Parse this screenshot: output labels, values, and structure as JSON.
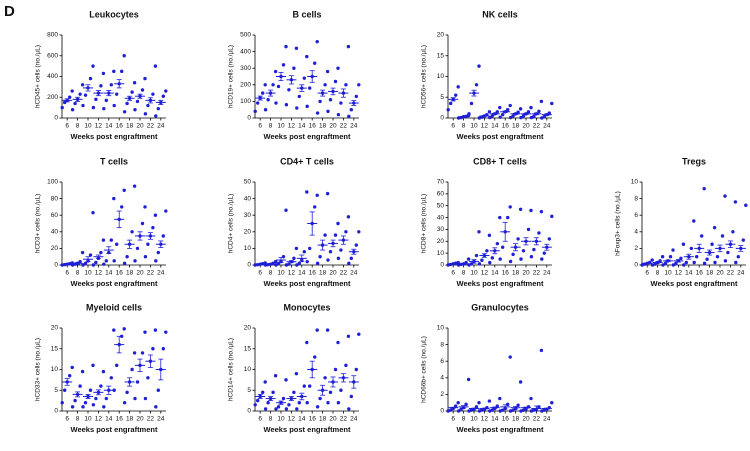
{
  "panel_label": "D",
  "chart_data": [
    {
      "type": "dotplot",
      "title": "Leukocytes",
      "x_label": "Weeks post engraftment",
      "y_label": "hCD45+ cells (no./µL)",
      "color": "#1f1fd6",
      "categories": [
        "6",
        "8",
        "10",
        "12",
        "14",
        "16",
        "18",
        "20",
        "22",
        "24"
      ],
      "ylim": [
        0,
        800
      ],
      "yticks": [
        0,
        200,
        400,
        600,
        800
      ],
      "values": [
        170,
        180,
        290,
        240,
        240,
        330,
        190,
        210,
        170,
        150
      ],
      "errors": [
        15,
        20,
        30,
        25,
        25,
        40,
        20,
        20,
        25,
        20
      ],
      "points": [
        [
          100,
          150,
          170,
          200,
          260
        ],
        [
          80,
          140,
          180,
          230,
          320
        ],
        [
          120,
          220,
          290,
          380,
          500
        ],
        [
          100,
          180,
          240,
          310,
          430
        ],
        [
          90,
          170,
          240,
          320,
          450
        ],
        [
          120,
          230,
          330,
          450,
          600
        ],
        [
          60,
          140,
          190,
          250,
          340
        ],
        [
          80,
          160,
          210,
          270,
          380
        ],
        [
          40,
          120,
          170,
          230,
          500
        ],
        [
          20,
          90,
          150,
          210,
          260
        ]
      ]
    },
    {
      "type": "dotplot",
      "title": "B cells",
      "x_label": "Weeks post engraftment",
      "y_label": "hCD19+ cells (no./µL)",
      "color": "#1f1fd6",
      "categories": [
        "6",
        "8",
        "10",
        "12",
        "14",
        "16",
        "18",
        "20",
        "22",
        "24"
      ],
      "ylim": [
        0,
        500
      ],
      "yticks": [
        0,
        100,
        200,
        300,
        400,
        500
      ],
      "values": [
        120,
        150,
        250,
        230,
        180,
        250,
        150,
        160,
        150,
        90
      ],
      "errors": [
        12,
        18,
        25,
        25,
        20,
        35,
        18,
        20,
        25,
        15
      ],
      "points": [
        [
          40,
          90,
          120,
          150,
          200
        ],
        [
          50,
          110,
          150,
          200,
          280
        ],
        [
          90,
          190,
          250,
          320,
          430
        ],
        [
          80,
          170,
          230,
          300,
          420
        ],
        [
          60,
          130,
          180,
          240,
          370
        ],
        [
          70,
          180,
          250,
          330,
          460
        ],
        [
          30,
          100,
          150,
          200,
          280
        ],
        [
          40,
          110,
          160,
          220,
          300
        ],
        [
          20,
          90,
          150,
          200,
          430
        ],
        [
          10,
          50,
          90,
          130,
          200
        ]
      ]
    },
    {
      "type": "dotplot",
      "title": "NK cells",
      "x_label": "Weeks post engraftment",
      "y_label": "hCD56+ cells (no./µL)",
      "color": "#1f1fd6",
      "categories": [
        "6",
        "8",
        "10",
        "12",
        "14",
        "16",
        "18",
        "20",
        "22",
        "24"
      ],
      "ylim": [
        0,
        20
      ],
      "yticks": [
        0,
        5,
        10,
        15,
        20
      ],
      "values": [
        4.5,
        0.3,
        6,
        0.5,
        1,
        1.5,
        1,
        1,
        1,
        0.8
      ],
      "errors": [
        0.4,
        0.05,
        0.7,
        0.1,
        0.15,
        0.2,
        0.15,
        0.15,
        0.2,
        0.2
      ],
      "points": [
        [
          2,
          3.5,
          4.5,
          5.5,
          7.5
        ],
        [
          0,
          0.1,
          0.3,
          0.4,
          0.6
        ],
        [
          1,
          3.5,
          6,
          8,
          12.5
        ],
        [
          0,
          0.2,
          0.5,
          0.8,
          1.5
        ],
        [
          0.1,
          0.5,
          1,
          1.5,
          2.5
        ],
        [
          0.2,
          0.8,
          1.5,
          2,
          3
        ],
        [
          0.1,
          0.5,
          1,
          1.4,
          2.2
        ],
        [
          0.1,
          0.5,
          1,
          1.5,
          2.5
        ],
        [
          0.1,
          0.4,
          1,
          1.6,
          4
        ],
        [
          0,
          0.3,
          0.8,
          1.2,
          3.5
        ]
      ]
    },
    {
      "type": "dotplot",
      "title": "T cells",
      "x_label": "Weeks post engraftment",
      "y_label": "hCD3+ cells (no./µL)",
      "color": "#1f1fd6",
      "categories": [
        "6",
        "8",
        "10",
        "12",
        "14",
        "16",
        "18",
        "20",
        "22",
        "24"
      ],
      "ylim": [
        0,
        100
      ],
      "yticks": [
        0,
        20,
        40,
        60,
        80,
        100
      ],
      "values": [
        1,
        2,
        7,
        10,
        18,
        55,
        25,
        35,
        35,
        25
      ],
      "errors": [
        0.3,
        1,
        3,
        2,
        4,
        10,
        5,
        5,
        4,
        4
      ],
      "points": [
        [
          0,
          0.5,
          1,
          1.5,
          2.5
        ],
        [
          0,
          1,
          2,
          4,
          15
        ],
        [
          0,
          2,
          5,
          12,
          63
        ],
        [
          0,
          3,
          8,
          15,
          30
        ],
        [
          1,
          5,
          15,
          30,
          80
        ],
        [
          5,
          25,
          55,
          70,
          90
        ],
        [
          2,
          10,
          25,
          40,
          95
        ],
        [
          5,
          20,
          35,
          50,
          70
        ],
        [
          10,
          25,
          35,
          45,
          60
        ],
        [
          5,
          15,
          25,
          35,
          65
        ]
      ]
    },
    {
      "type": "dotplot",
      "title": "CD4+ T cells",
      "x_label": "Weeks post engraftment",
      "y_label": "hCD4+ cells (no./µL)",
      "color": "#1f1fd6",
      "categories": [
        "6",
        "8",
        "10",
        "12",
        "14",
        "16",
        "18",
        "20",
        "22",
        "24"
      ],
      "ylim": [
        0,
        50
      ],
      "yticks": [
        0,
        10,
        20,
        30,
        40,
        50
      ],
      "values": [
        0.5,
        0.5,
        3,
        2,
        4,
        25,
        12,
        13,
        15,
        8
      ],
      "errors": [
        0.1,
        0.2,
        1.5,
        0.6,
        2,
        7,
        3,
        2,
        2.5,
        1.5
      ],
      "points": [
        [
          0,
          0.2,
          0.5,
          0.8,
          1.2
        ],
        [
          0,
          0.2,
          0.5,
          1,
          2
        ],
        [
          0,
          1,
          2,
          5,
          33
        ],
        [
          0,
          0.5,
          2,
          4,
          10
        ],
        [
          0,
          1,
          3,
          8,
          44
        ],
        [
          2,
          10,
          25,
          35,
          42
        ],
        [
          1,
          5,
          12,
          18,
          43
        ],
        [
          3,
          8,
          13,
          18,
          25
        ],
        [
          4,
          9,
          15,
          20,
          29
        ],
        [
          1,
          4,
          8,
          12,
          20
        ]
      ]
    },
    {
      "type": "dotplot",
      "title": "CD8+ T cells",
      "x_label": "Weeks post engraftment",
      "y_label": "hCD8+ cells (no./µL)",
      "color": "#1f1fd6",
      "categories": [
        "6",
        "8",
        "10",
        "12",
        "14",
        "16",
        "18",
        "20",
        "22",
        "24"
      ],
      "ylim": [
        0,
        70
      ],
      "yticks": [
        0,
        10,
        20,
        30,
        40,
        50,
        60,
        70
      ],
      "values": [
        1,
        1,
        3,
        8,
        12,
        28,
        15,
        20,
        20,
        15
      ],
      "errors": [
        0.2,
        0.3,
        1.5,
        1.5,
        2.5,
        8,
        3,
        3,
        3,
        2.5
      ],
      "points": [
        [
          0,
          0.5,
          1,
          1.5,
          2
        ],
        [
          0,
          0.5,
          1,
          2,
          5
        ],
        [
          0,
          1,
          3,
          8,
          28
        ],
        [
          1,
          4,
          8,
          12,
          25
        ],
        [
          2,
          6,
          12,
          18,
          40
        ],
        [
          5,
          15,
          28,
          40,
          49
        ],
        [
          3,
          9,
          15,
          22,
          47
        ],
        [
          5,
          12,
          20,
          30,
          46
        ],
        [
          7,
          13,
          20,
          27,
          45
        ],
        [
          5,
          10,
          15,
          22,
          41
        ]
      ]
    },
    {
      "type": "dotplot",
      "title": "Tregs",
      "x_label": "Weeks post engraftment",
      "y_label": "hFoxp3+ cells (no./µL)",
      "color": "#1f1fd6",
      "categories": [
        "6",
        "8",
        "10",
        "12",
        "14",
        "16",
        "18",
        "20",
        "22",
        "24"
      ],
      "ylim": [
        0,
        10
      ],
      "yticks": [
        0,
        2,
        4,
        6,
        8,
        10
      ],
      "values": [
        0.2,
        0.3,
        0.5,
        0.5,
        1,
        2,
        1.5,
        2,
        2.5,
        2
      ],
      "errors": [
        0.05,
        0.08,
        0.1,
        0.15,
        0.3,
        0.5,
        0.3,
        0.4,
        0.4,
        0.35
      ],
      "points": [
        [
          0,
          0.1,
          0.2,
          0.3,
          0.6
        ],
        [
          0,
          0.1,
          0.3,
          0.5,
          1
        ],
        [
          0,
          0.2,
          0.5,
          1,
          1.8
        ],
        [
          0,
          0.2,
          0.5,
          0.8,
          2.5
        ],
        [
          0,
          0.3,
          1,
          2,
          5.3
        ],
        [
          0.3,
          1,
          2,
          3.5,
          9.2
        ],
        [
          0.2,
          0.7,
          1.5,
          2.5,
          4.5
        ],
        [
          0.3,
          1,
          2,
          3.5,
          8.3
        ],
        [
          0.5,
          1.5,
          2.5,
          4,
          7.6
        ],
        [
          0.3,
          1,
          2,
          3,
          7.2
        ]
      ]
    },
    {
      "type": "dotplot",
      "title": "Myeloid cells",
      "x_label": "Weeks post engraftment",
      "y_label": "hCD33+ cells (no./µL)",
      "color": "#1f1fd6",
      "categories": [
        "6",
        "8",
        "10",
        "12",
        "14",
        "16",
        "18",
        "20",
        "22",
        "24"
      ],
      "ylim": [
        0,
        20
      ],
      "yticks": [
        0,
        5,
        10,
        15,
        20
      ],
      "values": [
        7,
        4,
        3.5,
        4.5,
        5,
        16,
        7,
        11,
        12,
        10
      ],
      "errors": [
        0.8,
        0.6,
        0.5,
        0.6,
        1,
        2,
        1,
        1.5,
        1.5,
        2.5
      ],
      "points": [
        [
          2,
          5,
          7,
          8.5,
          10.5
        ],
        [
          1,
          2.5,
          4,
          6,
          9.5
        ],
        [
          1,
          2,
          3.5,
          5,
          11
        ],
        [
          1.5,
          3,
          4.5,
          6,
          9.5
        ],
        [
          1,
          3,
          5,
          8,
          19.5
        ],
        [
          5,
          11,
          16,
          18,
          19.8
        ],
        [
          2,
          4.5,
          7,
          10,
          14
        ],
        [
          3,
          7,
          11,
          14,
          19
        ],
        [
          3,
          8,
          12,
          15,
          19.5
        ],
        [
          1,
          5,
          10,
          15,
          19
        ]
      ]
    },
    {
      "type": "dotplot",
      "title": "Monocytes",
      "x_label": "Weeks post engraftment",
      "y_label": "hCD14+ cells (no./µL)",
      "color": "#1f1fd6",
      "categories": [
        "6",
        "8",
        "10",
        "12",
        "14",
        "16",
        "18",
        "20",
        "22",
        "24"
      ],
      "ylim": [
        0,
        20
      ],
      "yticks": [
        0,
        5,
        10,
        15,
        20
      ],
      "values": [
        3.5,
        3,
        2,
        3,
        3.5,
        10,
        5,
        7,
        8,
        7
      ],
      "errors": [
        0.5,
        0.5,
        0.4,
        0.5,
        0.8,
        2,
        1.2,
        1.2,
        1,
        1.5
      ],
      "points": [
        [
          1.5,
          2.5,
          3.5,
          4.5,
          7
        ],
        [
          0.5,
          2,
          3,
          4.5,
          8.5
        ],
        [
          0.5,
          1,
          2,
          3,
          7.5
        ],
        [
          0.5,
          1.5,
          3,
          4.5,
          9
        ],
        [
          0.5,
          2,
          3.5,
          6,
          16.5
        ],
        [
          2,
          6,
          10,
          13,
          19.5
        ],
        [
          1,
          3,
          5,
          8,
          19.5
        ],
        [
          2,
          4.5,
          7,
          10,
          16.5
        ],
        [
          2,
          5,
          8,
          11,
          18
        ],
        [
          0.5,
          3.5,
          7,
          10,
          18.5
        ]
      ]
    },
    {
      "type": "dotplot",
      "title": "Granulocytes",
      "x_label": "Weeks post engraftment",
      "y_label": "hCD66b+ cells (no./µL)",
      "color": "#1f1fd6",
      "categories": [
        "6",
        "8",
        "10",
        "12",
        "14",
        "16",
        "18",
        "20",
        "22",
        "24"
      ],
      "ylim": [
        0,
        10
      ],
      "yticks": [
        0,
        2,
        4,
        6,
        8,
        10
      ],
      "values": [
        0.4,
        0.5,
        0.3,
        0.3,
        0.4,
        0.5,
        0.4,
        0.4,
        0.3,
        0.3
      ],
      "errors": [
        0.05,
        0.15,
        0.05,
        0.05,
        0.08,
        0.25,
        0.15,
        0.07,
        0.3,
        0.05
      ],
      "points": [
        [
          0,
          0.1,
          0.3,
          0.6,
          1
        ],
        [
          0,
          0.2,
          0.4,
          0.8,
          3.8
        ],
        [
          0,
          0.1,
          0.2,
          0.5,
          1
        ],
        [
          0,
          0.1,
          0.2,
          0.4,
          1.2
        ],
        [
          0,
          0.1,
          0.3,
          0.6,
          1.5
        ],
        [
          0,
          0.1,
          0.3,
          0.8,
          6.5
        ],
        [
          0,
          0.1,
          0.3,
          0.7,
          3.5
        ],
        [
          0,
          0.1,
          0.2,
          0.5,
          1.5
        ],
        [
          0,
          0.1,
          0.2,
          0.5,
          7.3
        ],
        [
          0,
          0.1,
          0.2,
          0.4,
          1
        ]
      ]
    }
  ]
}
